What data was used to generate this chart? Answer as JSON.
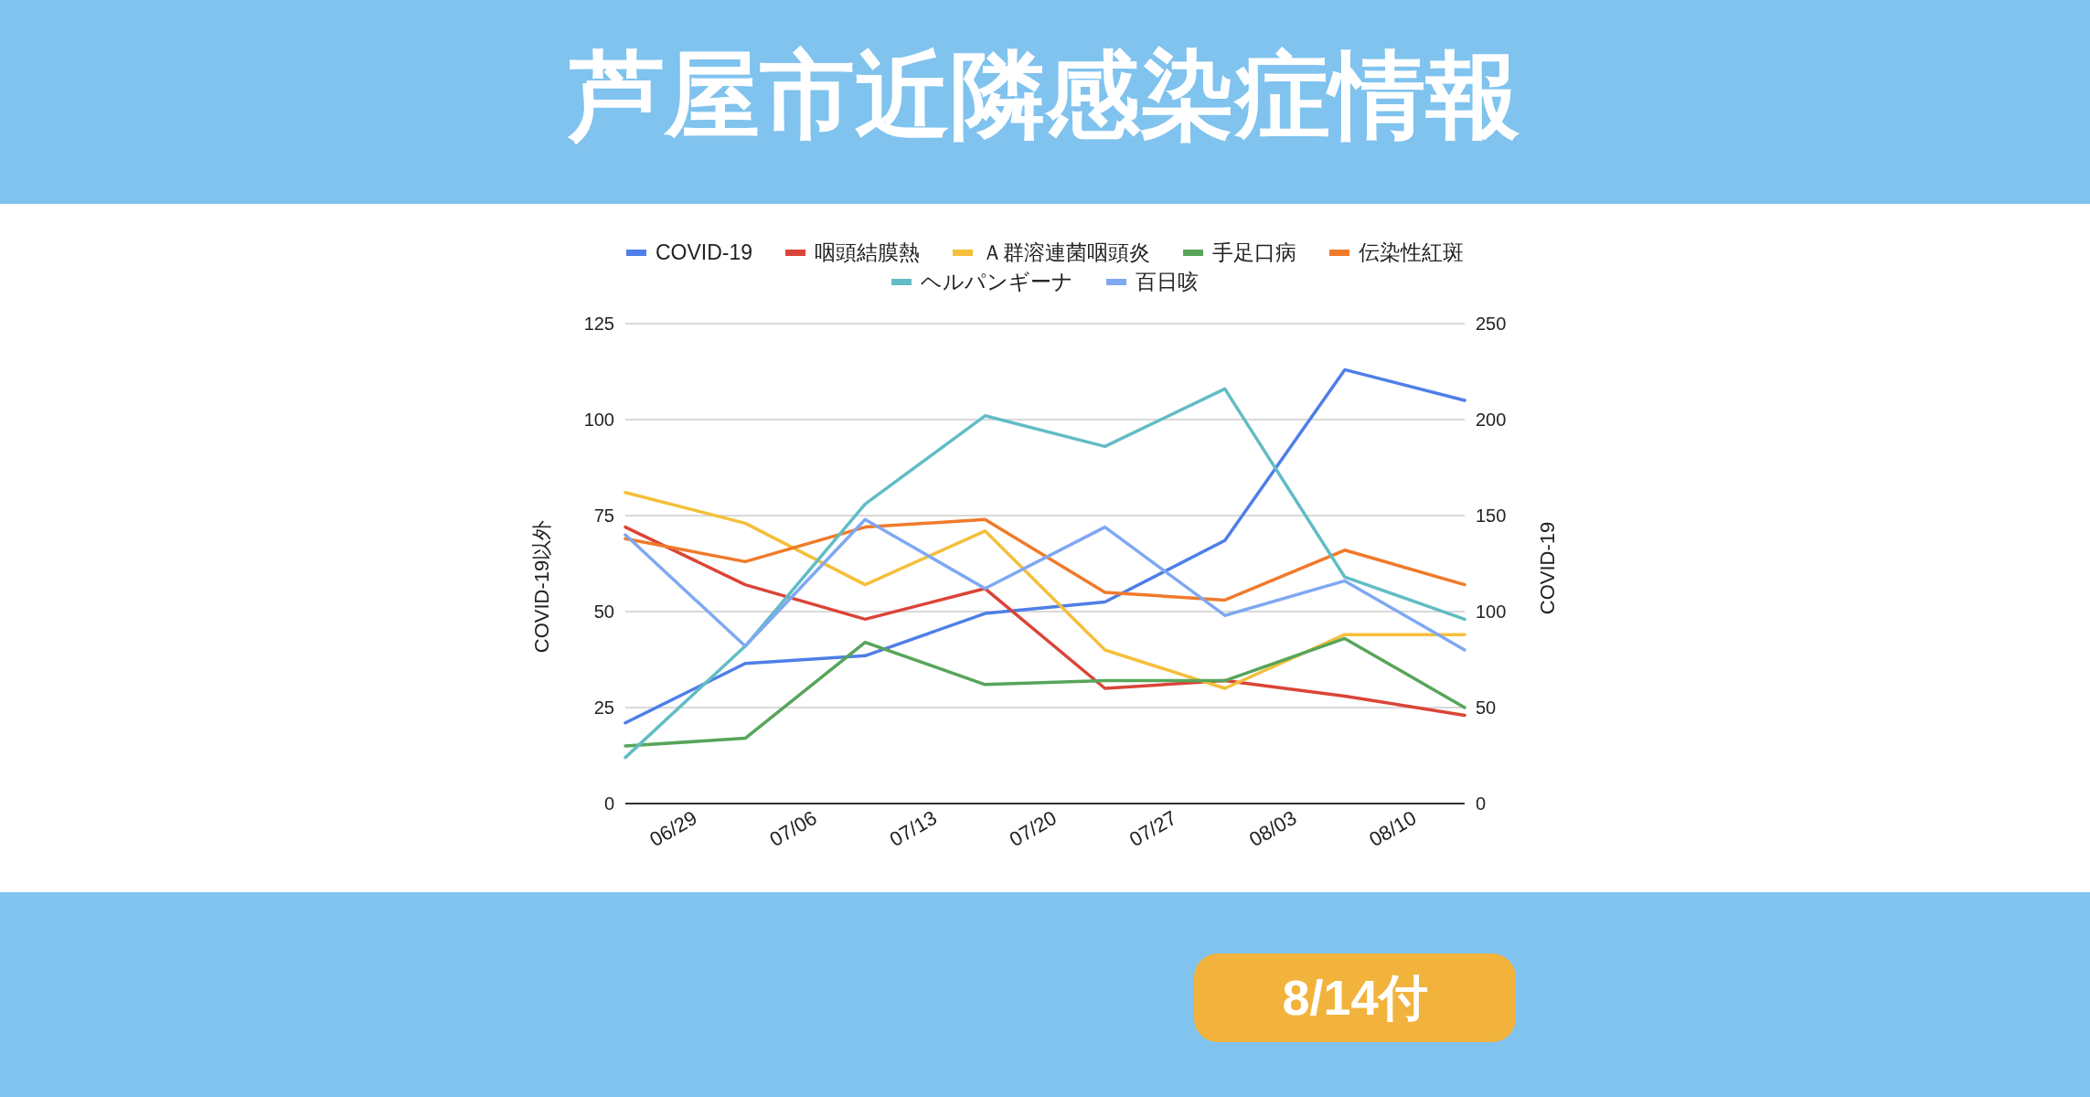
{
  "chart_data": {
    "type": "line",
    "title": "芦屋市近隣感染症情報",
    "annotations": [
      "8/14付"
    ],
    "x": [
      "--06-26",
      "--07-03",
      "--07-10",
      "--07-17",
      "--07-24",
      "--07-31",
      "--08-07",
      "--08-14"
    ],
    "xlim": [
      "--06-26",
      "--08-14"
    ],
    "xticks": [
      {
        "value": "--06-29",
        "label": "06/29"
      },
      {
        "value": "--07-06",
        "label": "07/06"
      },
      {
        "value": "--07-13",
        "label": "07/13"
      },
      {
        "value": "--07-20",
        "label": "07/20"
      },
      {
        "value": "--07-27",
        "label": "07/27"
      },
      {
        "value": "--08-03",
        "label": "08/03"
      },
      {
        "value": "--08-10",
        "label": "08/10"
      }
    ],
    "ylabel": "COVID-19以外",
    "y2label": "COVID-19",
    "ylim": [
      0,
      125
    ],
    "yticks": [
      0,
      25,
      50,
      75,
      100,
      125
    ],
    "y2lim": [
      0,
      250
    ],
    "y2ticks": [
      0,
      50,
      100,
      150,
      200,
      250
    ],
    "grid": "y",
    "legend": "top",
    "series": [
      {
        "name": "COVID-19",
        "color": "#4e7ee8",
        "axis": "y2",
        "values": [
          42,
          73,
          77,
          99,
          105,
          137,
          226,
          210
        ]
      },
      {
        "name": "咽頭結膜熱",
        "color": "#db4437",
        "values": [
          72,
          57,
          48,
          56,
          30,
          32,
          28,
          23
        ]
      },
      {
        "name": "Ａ群溶連菌咽頭炎",
        "color": "#f4bf3a",
        "values": [
          81,
          73,
          57,
          71,
          40,
          30,
          44,
          44
        ]
      },
      {
        "name": "手足口病",
        "color": "#57a55a",
        "values": [
          15,
          17,
          42,
          31,
          32,
          32,
          43,
          25
        ]
      },
      {
        "name": "伝染性紅斑",
        "color": "#f07a2a",
        "values": [
          69,
          63,
          72,
          74,
          55,
          53,
          66,
          57
        ]
      },
      {
        "name": "ヘルパンギーナ",
        "color": "#62bcc5",
        "values": [
          12,
          41,
          78,
          101,
          93,
          108,
          59,
          48
        ]
      },
      {
        "name": "百日咳",
        "color": "#7fa8f2",
        "values": [
          70,
          41,
          74,
          56,
          72,
          49,
          58,
          40
        ]
      }
    ]
  }
}
